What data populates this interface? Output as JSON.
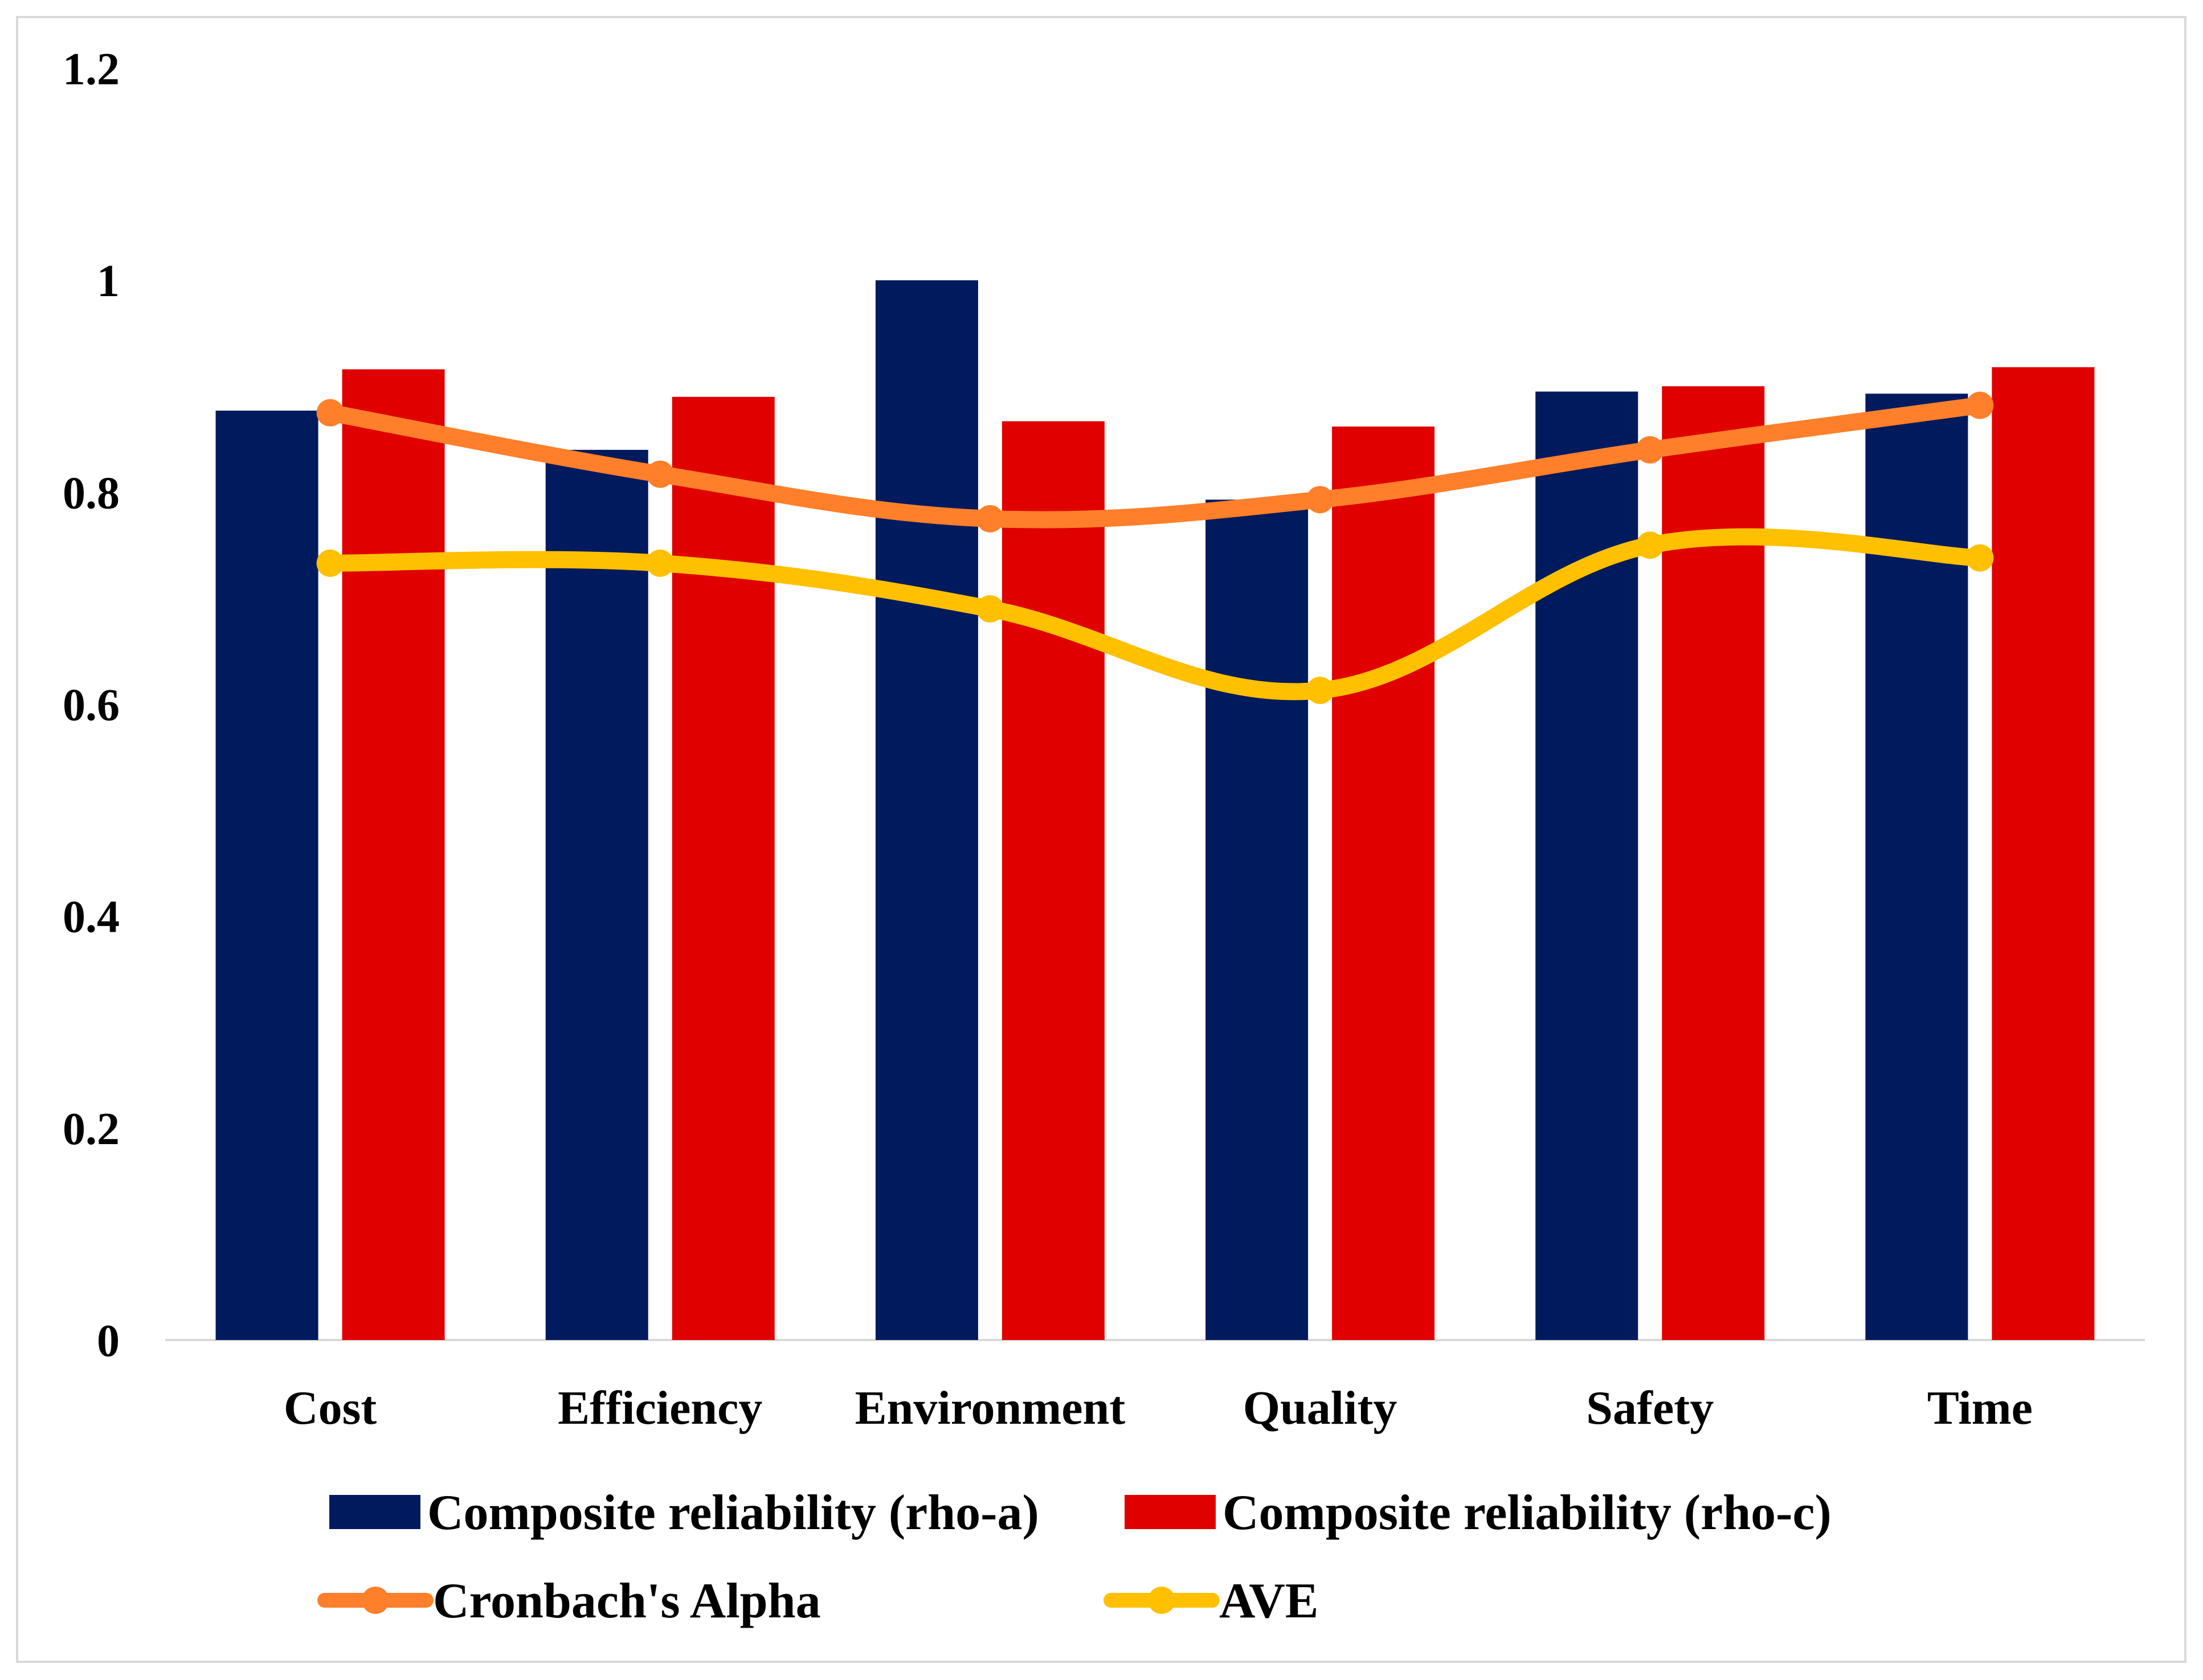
{
  "chart_data": {
    "type": "bar",
    "title": "",
    "xlabel": "",
    "ylabel": "",
    "ylim": [
      0,
      1.2
    ],
    "yticks": [
      0,
      0.2,
      0.4,
      0.6,
      0.8,
      1,
      1.2
    ],
    "ytick_labels": [
      "0",
      "0.2",
      "0.4",
      "0.6",
      "0.8",
      "1",
      "1.2"
    ],
    "grid": false,
    "legend_position": "bottom",
    "categories": [
      "Cost",
      "Efficiency",
      "Environment",
      "Quality",
      "Safety",
      "Time"
    ],
    "series": [
      {
        "name": "Composite reliability (rho-a)",
        "kind": "bar",
        "color": "#001a5e",
        "values": [
          0.877,
          0.84,
          1.0,
          0.793,
          0.895,
          0.893
        ]
      },
      {
        "name": "Composite reliability (rho-c)",
        "kind": "bar",
        "color": "#e00000",
        "values": [
          0.916,
          0.89,
          0.867,
          0.862,
          0.9,
          0.918
        ]
      },
      {
        "name": "Cronbach's Alpha",
        "kind": "line",
        "color": "#ff7f2a",
        "values": [
          0.875,
          0.817,
          0.775,
          0.793,
          0.84,
          0.882
        ]
      },
      {
        "name": "AVE",
        "kind": "line",
        "color": "#ffc000",
        "values": [
          0.733,
          0.733,
          0.69,
          0.613,
          0.75,
          0.738
        ]
      }
    ]
  }
}
